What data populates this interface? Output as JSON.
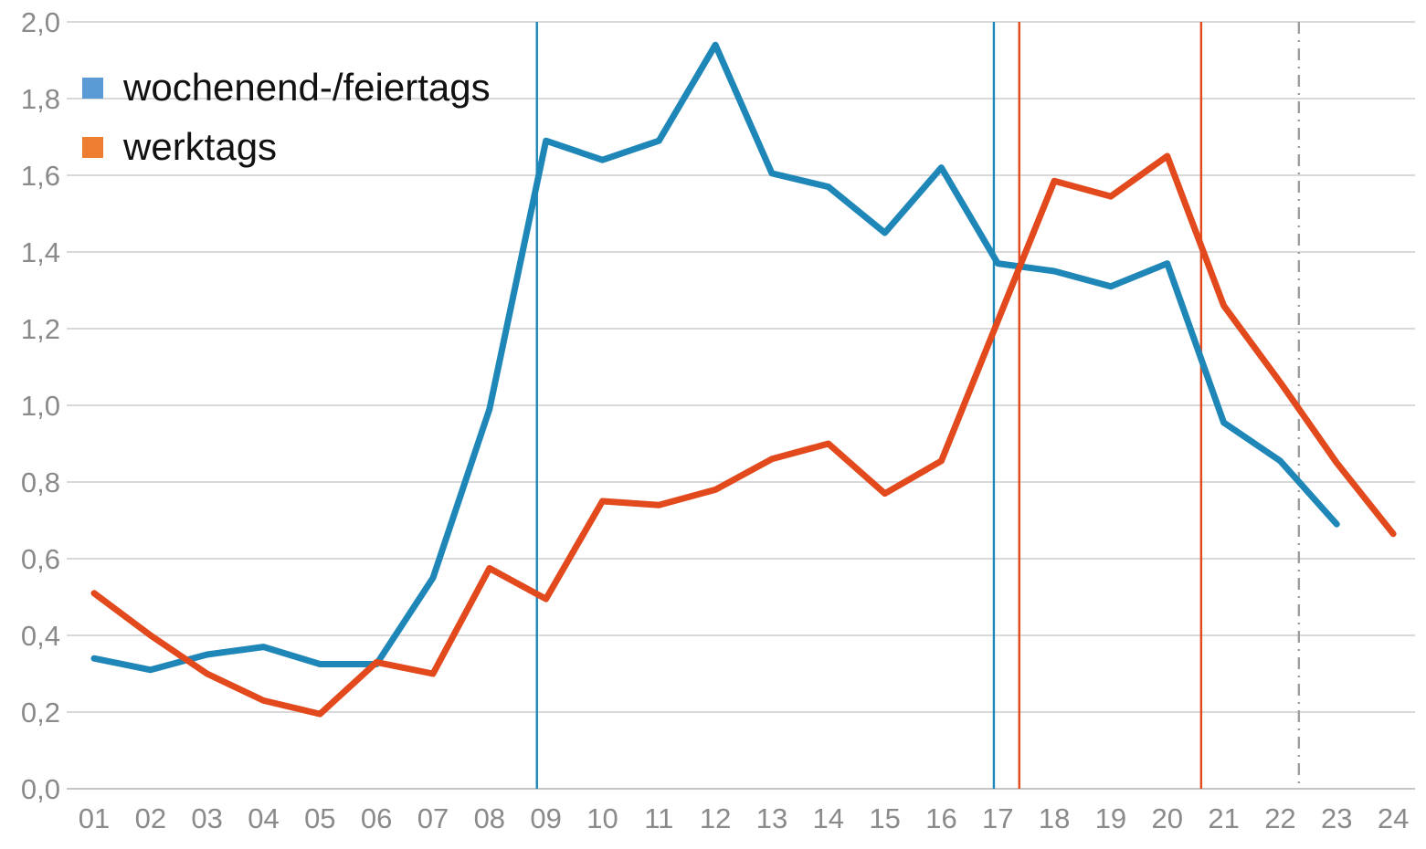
{
  "legend": {
    "items": [
      {
        "label": "wochenend-/feiertags",
        "color": "#5b9bd5"
      },
      {
        "label": "werktags",
        "color": "#ed7d31"
      }
    ]
  },
  "axes": {
    "y_ticks": [
      "2,0",
      "1,8",
      "1,6",
      "1,4",
      "1,2",
      "1,0",
      "0,8",
      "0,6",
      "0,4",
      "0,2",
      "0,0"
    ],
    "x_ticks": [
      "01",
      "02",
      "03",
      "04",
      "05",
      "06",
      "07",
      "08",
      "09",
      "10",
      "11",
      "12",
      "13",
      "14",
      "15",
      "16",
      "17",
      "18",
      "19",
      "20",
      "21",
      "22",
      "23",
      "24"
    ],
    "tick_color": "#8a8a8a",
    "gridline_color": "#d9d9d9",
    "baseline_color": "#c5c5c5"
  },
  "chart_data": {
    "type": "line",
    "categories": [
      "01",
      "02",
      "03",
      "04",
      "05",
      "06",
      "07",
      "08",
      "09",
      "10",
      "11",
      "12",
      "13",
      "14",
      "15",
      "16",
      "17",
      "18",
      "19",
      "20",
      "21",
      "22",
      "23",
      "24"
    ],
    "x_hours": [
      1,
      2,
      3,
      4,
      5,
      6,
      7,
      8,
      9,
      10,
      11,
      12,
      13,
      14,
      15,
      16,
      17,
      18,
      19,
      20,
      21,
      22,
      23,
      24
    ],
    "series": [
      {
        "name": "wochenend-/feiertags",
        "color": "#1e87b8",
        "values": [
          0.34,
          0.31,
          0.35,
          0.37,
          0.325,
          0.325,
          0.55,
          0.99,
          1.69,
          1.64,
          1.69,
          1.94,
          1.605,
          1.57,
          1.45,
          1.62,
          1.37,
          1.35,
          1.31,
          1.37,
          0.955,
          0.855,
          0.69,
          null
        ]
      },
      {
        "name": "werktags",
        "color": "#e2491c",
        "values": [
          0.51,
          0.4,
          0.3,
          0.23,
          0.195,
          0.33,
          0.3,
          0.575,
          0.495,
          0.75,
          0.74,
          0.78,
          0.86,
          0.9,
          0.77,
          0.855,
          1.22,
          1.585,
          1.545,
          1.65,
          1.26,
          1.06,
          0.85,
          0.665
        ]
      }
    ],
    "reference_lines": [
      {
        "name": "ref-line-blue-morning",
        "x": 8.84,
        "color": "#1e87b8",
        "style": "solid"
      },
      {
        "name": "ref-line-blue-evening",
        "x": 16.93,
        "color": "#1e87b8",
        "style": "solid"
      },
      {
        "name": "ref-line-orange-evening",
        "x": 17.38,
        "color": "#e2491c",
        "style": "solid"
      },
      {
        "name": "ref-line-orange-late",
        "x": 20.6,
        "color": "#e2491c",
        "style": "solid"
      },
      {
        "name": "ref-line-gray-dashdot",
        "x": 22.33,
        "color": "#9e9e9e",
        "style": "dashdot"
      }
    ],
    "title": "",
    "xlabel": "",
    "ylabel": "",
    "ylim": [
      0.0,
      2.0
    ],
    "xlim_hours": [
      1,
      24
    ],
    "grid": true,
    "legend_position": "top-left"
  }
}
